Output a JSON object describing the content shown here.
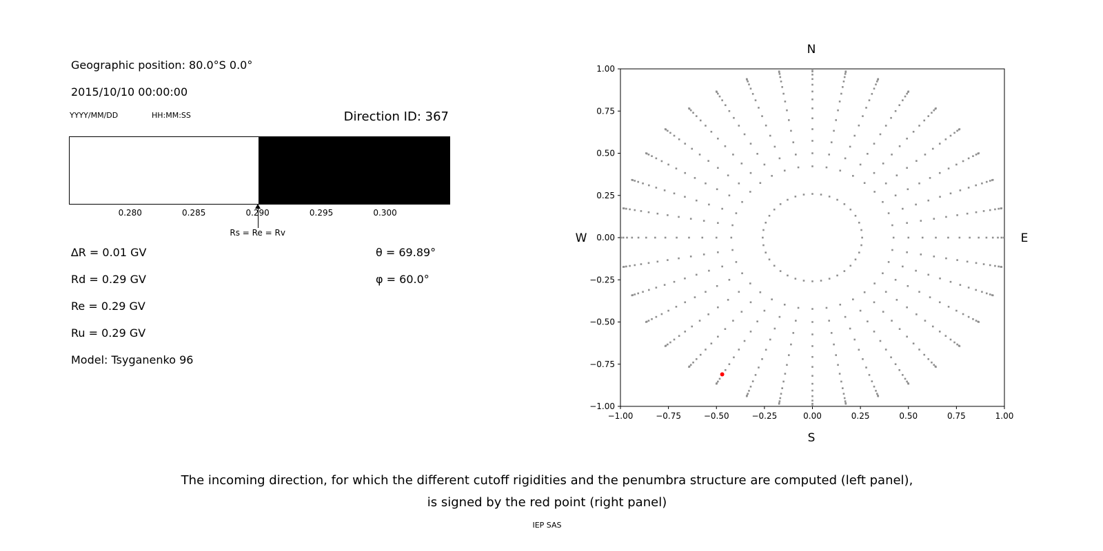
{
  "figure": {
    "caption_line1": "The incoming direction, for which the different cutoff rigidities and the penumbra structure are computed (left panel),",
    "caption_line2": "is signed by the red point (right panel)",
    "credit": "IEP SAS",
    "background_color": "#ffffff"
  },
  "left_panel": {
    "geographic_position": "Geographic position: 80.0°S 0.0°",
    "datetime": "2015/10/10 00:00:00",
    "date_format_label": "YYYY/MM/DD",
    "time_format_label": "HH:MM:SS",
    "direction_id": "Direction ID: 367",
    "values": [
      "∆R = 0.01 GV",
      "Rd = 0.29 GV",
      "Re = 0.29 GV",
      "Ru = 0.29 GV",
      "Model: Tsyganenko 96"
    ],
    "angles": [
      "θ = 69.89°",
      "φ = 60.0°"
    ]
  },
  "chart_data": [
    {
      "type": "bar",
      "name": "penumbra-structure-bar",
      "x_range": [
        0.2752,
        0.305
      ],
      "boundary": 0.29,
      "allowed_color": "#ffffff",
      "forbidden_color": "#000000",
      "ticks": [
        0.28,
        0.285,
        0.29,
        0.295,
        0.3
      ],
      "tick_labels": [
        "0.280",
        "0.285",
        "0.290",
        "0.295",
        "0.300"
      ],
      "arrow_at": 0.29,
      "arrow_label": "Rs = Re = Rv"
    },
    {
      "type": "scatter",
      "name": "incoming-direction-map",
      "xlim": [
        -1.0,
        1.0
      ],
      "ylim": [
        -1.0,
        1.0
      ],
      "x_ticks": [
        -1.0,
        -0.75,
        -0.5,
        -0.25,
        0.0,
        0.25,
        0.5,
        0.75,
        1.0
      ],
      "x_tick_labels": [
        "−1.00",
        "−0.75",
        "−0.50",
        "−0.25",
        "0.00",
        "0.25",
        "0.50",
        "0.75",
        "1.00"
      ],
      "y_ticks": [
        -1.0,
        -0.75,
        -0.5,
        -0.25,
        0.0,
        0.25,
        0.5,
        0.75,
        1.0
      ],
      "y_tick_labels": [
        "−1.00",
        "−0.75",
        "−0.50",
        "−0.25",
        "0.00",
        "0.25",
        "0.50",
        "0.75",
        "1.00"
      ],
      "compass_labels": {
        "top": "N",
        "right": "E",
        "bottom": "S",
        "left": "W"
      },
      "grid": false,
      "dot_color": "#8f8f8f",
      "ring": {
        "radius": 0.259,
        "azimuth_step_deg": 10
      },
      "spokes": {
        "azimuth_step_deg": 10,
        "zenith_start_deg": 25,
        "zenith_end_deg": 90,
        "zenith_step_deg": 5,
        "radius_rule": "sin(zenith)"
      },
      "red_point": {
        "x": -0.47,
        "y": -0.81,
        "color": "#ff0000"
      }
    }
  ]
}
